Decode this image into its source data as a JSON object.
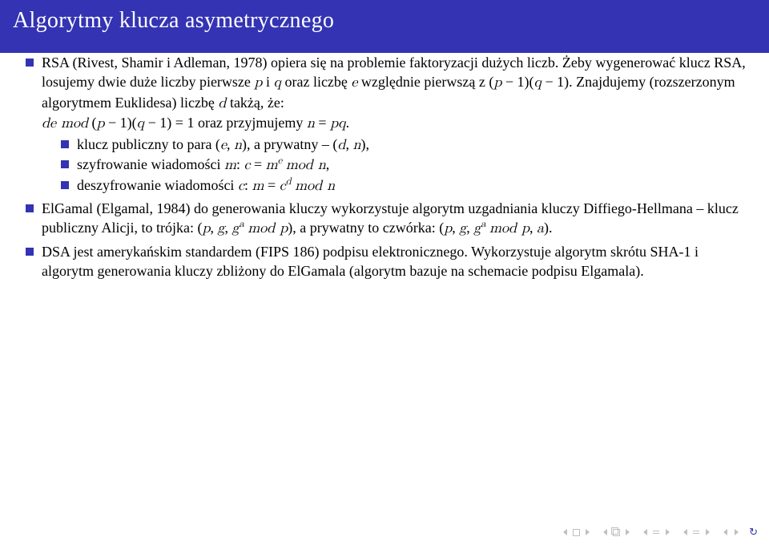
{
  "colors": {
    "header_bg": "#3333b3",
    "header_fg": "#ffffff",
    "bullet": "#3333b3",
    "nav_dim": "#bfbfbf",
    "nav_accent": "#3333b3"
  },
  "header": {
    "title": "Algorytmy klucza asymetrycznego"
  },
  "items": [
    {
      "html": "RSA (Rivest, Shamir i Adleman, 1978) opiera się na problemie faktoryzacji dużych liczb. Żeby wygenerować klucz RSA, losujemy dwie duże liczby pierwsze <span class='math'>p</span> i <span class='math'>q</span> oraz liczbę <span class='math'>e</span> względnie pierwszą z (<span class='math'>p</span> − 1)(<span class='math'>q</span> − 1). Znajdujemy (rozszerzonym algorytmem Euklidesa) liczbę <span class='math'>d</span> takżą, że:<br><span class='math'>de mod</span> (<span class='math'>p</span> − 1)(<span class='math'>q</span> − 1) = 1 oraz przyjmujemy <span class='math'>n</span> = <span class='math'>pq</span>.",
      "sub": [
        "klucz publiczny to para (<span class='math'>e</span>, <span class='math'>n</span>), a prywatny – (<span class='math'>d</span>, <span class='math'>n</span>),",
        "szyfrowanie wiadomości <span class='math'>m</span>: <span class='math'>c</span> = <span class='math'>m<span class='sup'>e</span></span> <span class='math'>mod n</span>,",
        "deszyfrowanie wiadomości <span class='math'>c</span>: <span class='math'>m</span> = <span class='math'>c<span class='sup'>d</span></span> <span class='math'>mod n</span>"
      ]
    },
    {
      "html": "ElGamal (Elgamal, 1984) do generowania kluczy wykorzystuje algorytm uzgadniania kluczy Diffiego-Hellmana – klucz publiczny Alicji, to trójka: (<span class='math'>p</span>, <span class='math'>g</span>, <span class='math'>g<span class='sup'>a</span></span> <span class='math'>mod p</span>), a prywatny to czwórka: (<span class='math'>p</span>, <span class='math'>g</span>, <span class='math'>g<span class='sup'>a</span></span> <span class='math'>mod p</span>, <span class='math'>a</span>).",
      "sub": []
    },
    {
      "html": "DSA jest amerykańskim standardem (FIPS 186) podpisu elektronicznego. Wykorzystuje algorytm skrótu SHA-1 i algorytm generowania kluczy zbliżony do ElGamala (algorytm bazuje na schemacie podpisu Elgamala).",
      "sub": []
    }
  ]
}
